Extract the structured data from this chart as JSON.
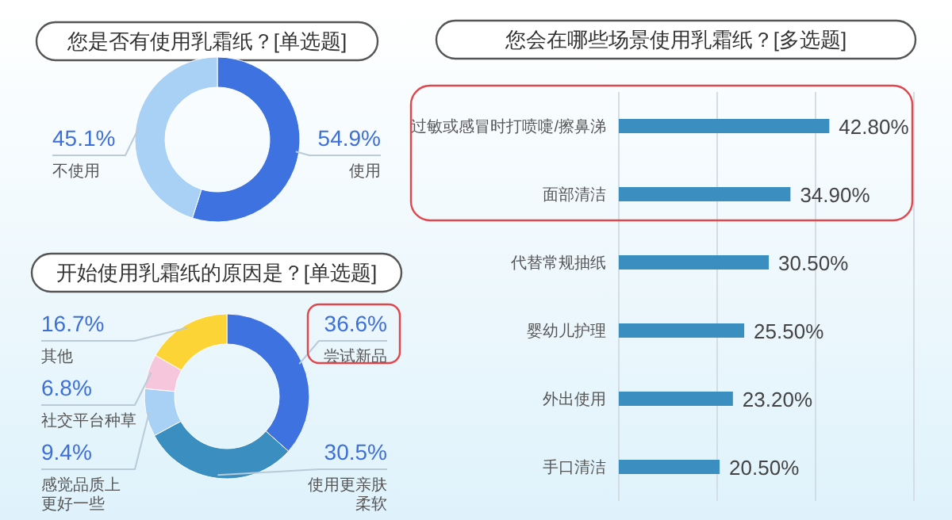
{
  "chart_data": [
    {
      "type": "donut",
      "title": "您是否有使用乳霜纸？[单选题]",
      "categories": [
        "使用",
        "不使用"
      ],
      "values": [
        54.9,
        45.1
      ],
      "colors": [
        "#3d72e0",
        "#a9d1f5"
      ],
      "value_labels": [
        "54.9%",
        "45.1%"
      ]
    },
    {
      "type": "donut",
      "title": "开始使用乳霜纸的原因是？[单选题]",
      "categories": [
        "尝试新品",
        "使用更亲肤柔软",
        "感觉品质上更好一些",
        "社交平台种草",
        "其他"
      ],
      "values": [
        36.6,
        30.5,
        9.4,
        6.8,
        16.7
      ],
      "colors": [
        "#3d72e0",
        "#3a8fc0",
        "#a9d1f5",
        "#f5c6dc",
        "#fdd435"
      ],
      "value_labels": [
        "36.6%",
        "30.5%",
        "9.4%",
        "6.8%",
        "16.7%"
      ]
    },
    {
      "type": "bar",
      "orientation": "horizontal",
      "title": "您会在哪些场景使用乳霜纸？[多选题]",
      "categories": [
        "过敏或感冒时打喷嚏/擦鼻涕",
        "面部清洁",
        "代替常规抽纸",
        "婴幼儿护理",
        "外出使用",
        "手口清洁"
      ],
      "values": [
        42.8,
        34.9,
        30.5,
        25.5,
        23.2,
        20.5
      ],
      "color": "#3a8fc0",
      "value_labels": [
        "42.80%",
        "34.90%",
        "30.50%",
        "25.50%",
        "23.20%",
        "20.50%"
      ],
      "xlim": [
        0,
        60
      ],
      "xticks": [
        {
          "value": 0,
          "label": null
        },
        {
          "value": 20,
          "label": null
        },
        {
          "value": 40,
          "label": null
        },
        {
          "value": 60,
          "label": null
        }
      ],
      "grid": "x",
      "tick_labels": "y"
    }
  ]
}
